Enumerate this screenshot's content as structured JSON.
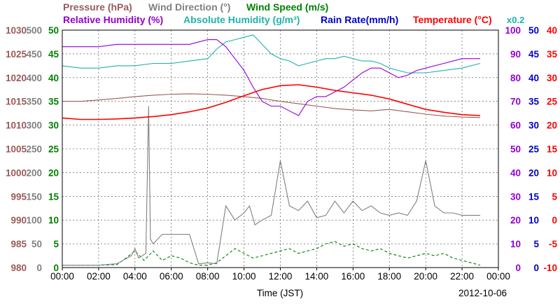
{
  "chart_data": {
    "type": "line",
    "legend": [
      {
        "name": "Pressure (hPa)",
        "color": "#9a5a5a"
      },
      {
        "name": "Wind Direction (°)",
        "color": "#808080"
      },
      {
        "name": "Wind Speed (m/s)",
        "color": "#008000"
      },
      {
        "name": "Relative Humidity (%)",
        "color": "#9400d3"
      },
      {
        "name": "Absolute Humidity (g/m³)",
        "color": "#20b2aa"
      },
      {
        "name": "Rain Rate(mm/h)",
        "color": "#0000cd"
      },
      {
        "name": "Temperature (°C)",
        "color": "#ff0000"
      },
      {
        "name": "x0.2",
        "color": "#20b2aa"
      }
    ],
    "date_label": "2012-10-06",
    "xlabel": "Time (JST)",
    "x_ticks": [
      "00:00",
      "02:00",
      "04:00",
      "06:00",
      "08:00",
      "10:00",
      "12:00",
      "14:00",
      "16:00",
      "18:00",
      "20:00",
      "22:00",
      "00:00"
    ],
    "xlim": [
      0,
      24
    ],
    "axes": {
      "pressure": {
        "color": "#9a5a5a",
        "lim": [
          980,
          1030
        ],
        "ticks": [
          "980",
          "985",
          "990",
          "995",
          "1000",
          "1005",
          "1010",
          "1015",
          "1020",
          "1025",
          "1030"
        ]
      },
      "wind_direction": {
        "color": "#808080",
        "lim": [
          0,
          500
        ],
        "ticks": [
          "0",
          "50",
          "100",
          "150",
          "200",
          "250",
          "300",
          "350",
          "400",
          "450",
          "500"
        ]
      },
      "wind_speed": {
        "color": "#008000",
        "lim": [
          0,
          50
        ],
        "ticks": [
          "0",
          "5",
          "10",
          "15",
          "20",
          "25",
          "30",
          "35",
          "40",
          "45",
          "50"
        ]
      },
      "humidity": {
        "color": "#9400d3",
        "lim": [
          0,
          100
        ],
        "ticks": [
          "0",
          "10",
          "20",
          "30",
          "40",
          "50",
          "60",
          "70",
          "80",
          "90",
          "100"
        ]
      },
      "rain_rate": {
        "color": "#0000cd",
        "lim": [
          0,
          50
        ],
        "ticks": [
          "0",
          "5",
          "10",
          "15",
          "20",
          "25",
          "30",
          "35",
          "40",
          "45",
          "50"
        ]
      },
      "temperature": {
        "color": "#ff0000",
        "lim": [
          -10,
          40
        ],
        "ticks": [
          "-10",
          "-5",
          "0",
          "5",
          "10",
          "15",
          "20",
          "25",
          "30",
          "35",
          "40"
        ]
      }
    },
    "grid": true,
    "series": [
      {
        "name": "Pressure (hPa)",
        "axis": "pressure",
        "color": "#9a5a5a",
        "x": [
          0,
          1,
          2,
          3,
          4,
          5,
          6,
          7,
          8,
          9,
          10,
          11,
          12,
          13,
          14,
          15,
          16,
          17,
          18,
          19,
          20,
          21,
          22,
          23
        ],
        "y": [
          1015.0,
          1015.0,
          1015.3,
          1015.6,
          1016.0,
          1016.3,
          1016.5,
          1016.6,
          1016.5,
          1016.3,
          1016.0,
          1015.6,
          1015.0,
          1014.5,
          1014.0,
          1013.5,
          1013.2,
          1013.0,
          1013.3,
          1012.8,
          1012.3,
          1011.9,
          1011.7,
          1011.6
        ]
      },
      {
        "name": "Temperature (°C)",
        "axis": "temperature",
        "color": "#ff0000",
        "x": [
          0,
          1,
          2,
          3,
          4,
          5,
          6,
          7,
          8,
          9,
          10,
          11,
          12,
          13,
          14,
          15,
          16,
          17,
          18,
          19,
          20,
          21,
          22,
          23
        ],
        "y": [
          21.5,
          21.2,
          21.2,
          21.3,
          21.5,
          21.8,
          22.2,
          22.8,
          23.6,
          24.8,
          26.2,
          27.5,
          28.3,
          28.5,
          28.0,
          27.3,
          26.8,
          26.3,
          25.5,
          24.4,
          23.3,
          22.7,
          22.2,
          22.0
        ]
      },
      {
        "name": "Relative Humidity (%)",
        "axis": "humidity",
        "color": "#9400d3",
        "x": [
          0,
          1,
          2,
          3,
          4,
          5,
          6,
          7,
          8,
          8.5,
          9,
          9.5,
          10,
          10.5,
          11,
          11.5,
          12,
          12.5,
          13,
          13.5,
          14,
          14.5,
          15,
          15.5,
          16,
          16.5,
          17,
          17.5,
          18,
          18.5,
          19,
          19.5,
          20,
          21,
          22,
          23
        ],
        "y": [
          93,
          93,
          93,
          94,
          94,
          94,
          94,
          94,
          96,
          96,
          93,
          88,
          83,
          76,
          70,
          68,
          68,
          66,
          64,
          70,
          72,
          72,
          74,
          76,
          79,
          82,
          84,
          84,
          82,
          80,
          81,
          83,
          84,
          86,
          88,
          88
        ]
      },
      {
        "name": "Absolute Humidity (g/m³)",
        "axis": "humidity",
        "color": "#20b2aa",
        "x": [
          0,
          1,
          2,
          3,
          4,
          5,
          6,
          7,
          8,
          8.5,
          9,
          9.5,
          10,
          10.5,
          11,
          11.5,
          12,
          12.5,
          13,
          13.5,
          14,
          14.5,
          15,
          15.5,
          16,
          16.5,
          17,
          17.5,
          18,
          18.5,
          19,
          19.5,
          20,
          21,
          22,
          23
        ],
        "y": [
          85,
          84,
          84,
          85,
          85,
          86,
          86,
          87,
          88,
          92,
          95,
          96,
          97,
          98,
          94,
          90,
          88,
          87,
          85,
          86,
          87,
          88,
          88,
          89,
          88,
          87,
          87,
          86,
          84,
          83,
          82,
          82,
          82,
          83,
          84,
          86
        ]
      },
      {
        "name": "Wind Direction (°)",
        "axis": "wind_direction",
        "color": "#808080",
        "x": [
          0,
          1,
          2,
          3,
          3.8,
          4.0,
          4.2,
          4.6,
          4.75,
          4.85,
          5.0,
          5.5,
          6.0,
          6.5,
          7.0,
          7.5,
          8.0,
          8.5,
          9.0,
          9.5,
          10.0,
          10.3,
          10.6,
          11.0,
          11.5,
          12.0,
          12.5,
          13.0,
          13.5,
          14.0,
          14.5,
          15.0,
          15.5,
          16.0,
          16.5,
          17.0,
          17.5,
          18.0,
          18.5,
          19.0,
          19.5,
          20.0,
          20.5,
          21.0,
          21.5,
          22.0,
          22.5,
          23.0
        ],
        "y": [
          5,
          5,
          5,
          8,
          25,
          40,
          20,
          30,
          340,
          60,
          50,
          70,
          70,
          70,
          70,
          8,
          10,
          8,
          130,
          100,
          115,
          130,
          90,
          100,
          110,
          225,
          130,
          120,
          140,
          105,
          110,
          140,
          115,
          140,
          120,
          130,
          115,
          110,
          115,
          110,
          140,
          225,
          130,
          115,
          115,
          110,
          110,
          110
        ]
      },
      {
        "name": "Wind Speed (m/s)",
        "axis": "wind_speed",
        "color": "#008000",
        "x": [
          0,
          1,
          2,
          3,
          3.5,
          4.0,
          4.5,
          5.0,
          5.5,
          6.0,
          6.5,
          7.0,
          7.5,
          8.0,
          8.5,
          9.0,
          9.5,
          10.0,
          10.5,
          11.0,
          11.5,
          12.0,
          12.5,
          13.0,
          13.5,
          14.0,
          14.5,
          15.0,
          15.5,
          16.0,
          16.5,
          17.0,
          17.5,
          18.0,
          18.5,
          19.0,
          19.5,
          20.0,
          20.5,
          21.0,
          21.5,
          22.0,
          22.5,
          23.0
        ],
        "y": [
          0.5,
          0.5,
          0.5,
          0.6,
          2.0,
          3.5,
          1.5,
          3.5,
          1.5,
          2.5,
          2.0,
          1.0,
          0.5,
          0.5,
          1.0,
          2.5,
          4.0,
          3.0,
          2.0,
          2.5,
          3.0,
          3.5,
          4.0,
          3.0,
          3.5,
          4.0,
          5.0,
          5.5,
          4.5,
          5.0,
          4.0,
          3.5,
          4.0,
          3.0,
          2.5,
          2.0,
          2.5,
          3.0,
          2.5,
          3.0,
          2.0,
          1.5,
          1.0,
          0.5
        ]
      },
      {
        "name": "Rain Rate(mm/h)",
        "axis": "rain_rate",
        "color": "#0000cd",
        "x": [
          0,
          23
        ],
        "y": [
          0,
          0
        ]
      }
    ]
  }
}
